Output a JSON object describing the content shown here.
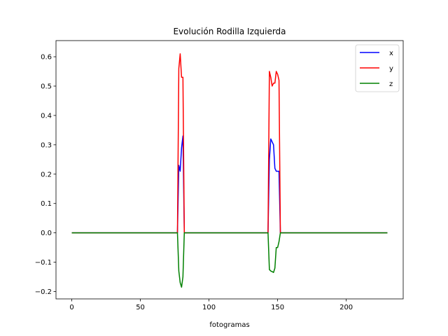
{
  "chart_data": {
    "type": "line",
    "title": "Evolución Rodilla Izquierda",
    "xlabel": "fotogramas",
    "ylabel": "",
    "xlim": [
      -11.5,
      241.5
    ],
    "ylim": [
      -0.225,
      0.655
    ],
    "xticks": [
      0,
      50,
      100,
      150,
      200
    ],
    "yticks": [
      -0.2,
      -0.1,
      0.0,
      0.1,
      0.2,
      0.3,
      0.4,
      0.5,
      0.6
    ],
    "ytick_labels": [
      "−0.2",
      "−0.1",
      "0.0",
      "0.1",
      "0.2",
      "0.3",
      "0.4",
      "0.5",
      "0.6"
    ],
    "grid": false,
    "legend": "top-right",
    "series": [
      {
        "name": "x",
        "color": "#0000ff",
        "points": [
          [
            0,
            0
          ],
          [
            77,
            0
          ],
          [
            78,
            0.23
          ],
          [
            79,
            0.21
          ],
          [
            80,
            0.29
          ],
          [
            81,
            0.33
          ],
          [
            82,
            0
          ],
          [
            143,
            0
          ],
          [
            144,
            0.25
          ],
          [
            145,
            0.32
          ],
          [
            146,
            0.31
          ],
          [
            147,
            0.3
          ],
          [
            148,
            0.22
          ],
          [
            149,
            0.21
          ],
          [
            150,
            0.21
          ],
          [
            151,
            0.21
          ],
          [
            152,
            0
          ],
          [
            230,
            0
          ]
        ]
      },
      {
        "name": "y",
        "color": "#ff0000",
        "points": [
          [
            0,
            0
          ],
          [
            77,
            0
          ],
          [
            78,
            0.56
          ],
          [
            79,
            0.61
          ],
          [
            80,
            0.53
          ],
          [
            81,
            0.53
          ],
          [
            82,
            0
          ],
          [
            143,
            0
          ],
          [
            144,
            0.55
          ],
          [
            145,
            0.53
          ],
          [
            146,
            0.5
          ],
          [
            147,
            0.51
          ],
          [
            148,
            0.51
          ],
          [
            149,
            0.55
          ],
          [
            150,
            0.54
          ],
          [
            151,
            0.52
          ],
          [
            152,
            0
          ],
          [
            230,
            0
          ]
        ]
      },
      {
        "name": "z",
        "color": "#008000",
        "points": [
          [
            0,
            0
          ],
          [
            77,
            0
          ],
          [
            78,
            -0.13
          ],
          [
            79,
            -0.17
          ],
          [
            80,
            -0.185
          ],
          [
            81,
            -0.15
          ],
          [
            82,
            0
          ],
          [
            143,
            0
          ],
          [
            144,
            -0.125
          ],
          [
            145,
            -0.13
          ],
          [
            146,
            -0.132
          ],
          [
            147,
            -0.135
          ],
          [
            148,
            -0.12
          ],
          [
            149,
            -0.05
          ],
          [
            150,
            -0.05
          ],
          [
            151,
            -0.03
          ],
          [
            152,
            0
          ],
          [
            230,
            0
          ]
        ]
      }
    ]
  }
}
